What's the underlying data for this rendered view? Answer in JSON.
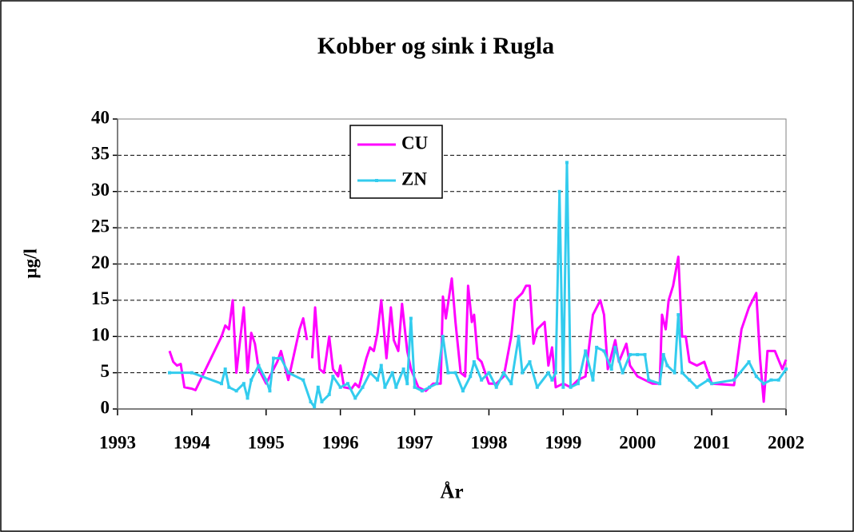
{
  "chart_data": {
    "type": "line",
    "title": "Kobber og sink i Rugla",
    "x_label": "År",
    "y_label": "µg/l",
    "xlim": [
      1993,
      2002
    ],
    "xticks": [
      1993,
      1994,
      1995,
      1996,
      1997,
      1998,
      1999,
      2000,
      2001,
      2002
    ],
    "ylim": [
      0,
      40
    ],
    "yticks": [
      0,
      5,
      10,
      15,
      20,
      25,
      30,
      35,
      40
    ],
    "grid": true,
    "series": [
      {
        "name": "CU",
        "color": "#ff00ff",
        "marker": false,
        "x": [
          1993.7,
          1993.75,
          1993.8,
          1993.85,
          1993.9,
          1994.0,
          1994.05,
          1994.4,
          1994.45,
          1994.5,
          1994.55,
          1994.6,
          1994.7,
          1994.75,
          1994.8,
          1994.85,
          1994.9,
          1995.0,
          1995.1,
          1995.15,
          1995.2,
          1995.3,
          1995.45,
          1995.5,
          1995.55,
          1995.6,
          1995.62,
          1995.66,
          1995.72,
          1995.78,
          1995.85,
          1995.9,
          1995.97,
          1996.0,
          1996.05,
          1996.15,
          1996.2,
          1996.25,
          1996.35,
          1996.4,
          1996.45,
          1996.5,
          1996.55,
          1996.62,
          1996.68,
          1996.72,
          1996.78,
          1996.83,
          1996.9,
          1996.95,
          1997.05,
          1997.15,
          1997.25,
          1997.35,
          1997.38,
          1997.42,
          1997.5,
          1997.55,
          1997.62,
          1997.68,
          1997.72,
          1997.77,
          1997.8,
          1997.85,
          1997.9,
          1998.0,
          1998.1,
          1998.2,
          1998.3,
          1998.35,
          1998.45,
          1998.5,
          1998.55,
          1998.6,
          1998.65,
          1998.75,
          1998.8,
          1998.85,
          1998.9,
          1999.0,
          1999.1,
          1999.2,
          1999.3,
          1999.4,
          1999.5,
          1999.55,
          1999.6,
          1999.7,
          1999.75,
          1999.85,
          1999.9,
          2000.0,
          2000.1,
          2000.2,
          2000.3,
          2000.33,
          2000.38,
          2000.42,
          2000.48,
          2000.55,
          2000.6,
          2000.65,
          2000.7,
          2000.8,
          2000.9,
          2001.0,
          2001.3,
          2001.4,
          2001.5,
          2001.6,
          2001.65,
          2001.7,
          2001.75,
          2001.85,
          2001.95,
          2002.0
        ],
        "values": [
          8,
          6.5,
          6,
          6.2,
          3,
          2.8,
          2.6,
          10,
          11.5,
          11,
          15,
          5,
          14,
          5,
          10.5,
          9,
          5.5,
          3.5,
          5.5,
          6.5,
          8,
          4,
          11,
          12.5,
          9.5,
          null,
          7,
          14,
          5.5,
          5,
          10,
          5.5,
          4.5,
          6,
          3,
          2.8,
          3.5,
          3,
          7,
          8.5,
          8,
          10.5,
          15,
          7,
          14,
          9.5,
          8,
          14.5,
          8,
          5.5,
          3,
          2.5,
          3.5,
          3.5,
          15.5,
          12.5,
          18,
          12,
          5,
          4.5,
          17,
          12,
          13,
          7,
          6.5,
          3.5,
          3.5,
          4.5,
          10,
          15,
          16,
          17,
          17,
          9,
          11,
          12,
          6,
          8.5,
          3,
          3.5,
          3,
          4,
          4.5,
          13,
          15,
          13,
          5.5,
          9.5,
          6.5,
          9,
          6,
          4.5,
          4,
          3.5,
          3.5,
          13,
          11,
          15,
          17,
          21,
          10,
          10,
          6.5,
          6,
          6.5,
          3.5,
          3.3,
          11,
          14,
          16,
          7,
          1,
          8,
          8,
          5.5,
          6.8
        ]
      },
      {
        "name": "ZN",
        "color": "#33ccee",
        "marker": true,
        "x": [
          1993.7,
          1994.0,
          1994.4,
          1994.45,
          1994.5,
          1994.6,
          1994.7,
          1994.75,
          1994.8,
          1994.9,
          1995.0,
          1995.05,
          1995.1,
          1995.2,
          1995.3,
          1995.5,
          1995.6,
          1995.65,
          1995.7,
          1995.75,
          1995.85,
          1995.9,
          1996.0,
          1996.1,
          1996.2,
          1996.3,
          1996.4,
          1996.5,
          1996.55,
          1996.6,
          1996.7,
          1996.75,
          1996.85,
          1996.9,
          1996.95,
          1997.0,
          1997.1,
          1997.2,
          1997.3,
          1997.38,
          1997.45,
          1997.55,
          1997.65,
          1997.75,
          1997.8,
          1997.9,
          1998.0,
          1998.1,
          1998.2,
          1998.3,
          1998.4,
          1998.45,
          1998.55,
          1998.65,
          1998.8,
          1998.85,
          1998.9,
          1998.95,
          1999.0,
          1999.05,
          1999.1,
          1999.2,
          1999.3,
          1999.4,
          1999.45,
          1999.55,
          1999.65,
          1999.7,
          1999.8,
          1999.9,
          2000.0,
          2000.1,
          2000.15,
          2000.3,
          2000.35,
          2000.4,
          2000.5,
          2000.55,
          2000.6,
          2000.7,
          2000.8,
          2000.95,
          2001.0,
          2001.3,
          2001.5,
          2001.6,
          2001.7,
          2001.8,
          2001.9,
          2002.0
        ],
        "values": [
          5,
          5,
          3.5,
          5.5,
          3,
          2.5,
          3.5,
          1.5,
          4,
          6,
          4,
          2.5,
          7,
          7,
          5,
          4,
          1,
          0.3,
          3,
          1,
          2,
          4.5,
          3,
          3.5,
          1.5,
          3,
          5,
          4,
          6,
          3,
          5,
          3,
          5.5,
          3.5,
          12.5,
          3,
          2.5,
          3,
          3.5,
          10,
          5,
          5,
          2.5,
          4.5,
          6.5,
          4,
          5,
          3,
          5,
          3.5,
          10,
          5,
          6.5,
          3,
          5,
          4,
          5,
          30,
          3,
          34,
          3,
          3.5,
          8,
          4,
          8.5,
          8,
          5.5,
          8.5,
          5,
          7.5,
          7.5,
          7.5,
          4,
          3.5,
          7.5,
          6,
          5,
          13,
          5,
          4,
          3,
          4,
          3.5,
          4,
          6.5,
          4.5,
          3.5,
          4,
          4,
          5.5
        ]
      }
    ]
  }
}
